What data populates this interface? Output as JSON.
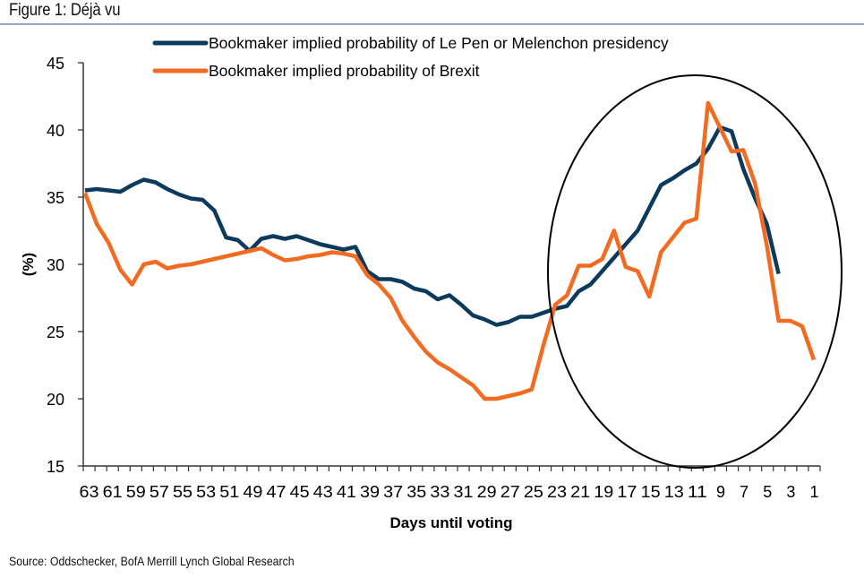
{
  "figure": {
    "title": "Figure 1: Déjà vu",
    "source": "Source: Oddschecker, BofA Merrill Lynch Global Research"
  },
  "chart_data": {
    "type": "line",
    "title": "Figure 1: Déjà vu",
    "xlabel": "Days until voting",
    "ylabel": "(%)",
    "ylim": [
      15,
      45
    ],
    "yticks": [
      15,
      20,
      25,
      30,
      35,
      40,
      45
    ],
    "xtick_labels": [
      "63",
      "61",
      "59",
      "57",
      "55",
      "53",
      "51",
      "49",
      "47",
      "45",
      "43",
      "41",
      "39",
      "37",
      "35",
      "33",
      "31",
      "29",
      "27",
      "25",
      "23",
      "21",
      "19",
      "17",
      "15",
      "13",
      "11",
      "9",
      "7",
      "5",
      "3",
      "1"
    ],
    "x": [
      63,
      62,
      61,
      60,
      59,
      58,
      57,
      56,
      55,
      54,
      53,
      52,
      51,
      50,
      49,
      48,
      47,
      46,
      45,
      44,
      43,
      42,
      41,
      40,
      39,
      38,
      37,
      36,
      35,
      34,
      33,
      32,
      31,
      30,
      29,
      28,
      27,
      26,
      25,
      24,
      23,
      22,
      21,
      20,
      19,
      18,
      17,
      16,
      15,
      14,
      13,
      12,
      11,
      10,
      9,
      8,
      7,
      6,
      5,
      4,
      3,
      2,
      1
    ],
    "grid": false,
    "legend_position": "top",
    "series": [
      {
        "name": "Bookmaker implied probability of Le Pen or Melenchon presidency",
        "color": "#0b3a5c",
        "values": [
          35.5,
          35.6,
          35.5,
          35.4,
          35.9,
          36.3,
          36.1,
          35.6,
          35.2,
          34.9,
          34.8,
          34.0,
          32.0,
          31.8,
          31.0,
          31.9,
          32.1,
          31.9,
          32.1,
          31.8,
          31.5,
          31.3,
          31.1,
          31.3,
          29.5,
          28.9,
          28.9,
          28.7,
          28.2,
          28.0,
          27.4,
          27.7,
          27.0,
          26.2,
          25.9,
          25.5,
          25.7,
          26.1,
          26.1,
          26.4,
          26.7,
          26.9,
          28.0,
          28.5,
          29.5,
          30.5,
          31.5,
          32.5,
          34.2,
          35.9,
          36.4,
          37.0,
          37.5,
          38.6,
          40.2,
          39.9,
          37.1,
          34.9,
          33.0,
          29.3,
          null,
          null,
          null
        ]
      },
      {
        "name": "Bookmaker implied probability of Brexit",
        "color": "#f26b21",
        "values": [
          35.3,
          33.0,
          31.6,
          29.6,
          28.5,
          30.0,
          30.2,
          29.7,
          29.9,
          30.0,
          30.2,
          30.4,
          30.6,
          30.8,
          31.0,
          31.2,
          30.7,
          30.3,
          30.4,
          30.6,
          30.7,
          30.9,
          30.8,
          30.6,
          29.2,
          28.5,
          27.5,
          25.8,
          24.6,
          23.5,
          22.7,
          22.2,
          21.6,
          21.0,
          20.0,
          20.0,
          20.2,
          20.4,
          20.7,
          24.0,
          27.0,
          27.7,
          29.9,
          29.9,
          30.4,
          32.5,
          29.8,
          29.5,
          27.6,
          30.9,
          32.0,
          33.1,
          33.4,
          42.0,
          40.2,
          38.4,
          38.5,
          36.0,
          31.4,
          25.8,
          25.8,
          25.4,
          22.9
        ]
      }
    ],
    "annotations": [
      {
        "type": "ellipse",
        "description": "circle highlighting the final ~23 days",
        "x_range_days": [
          24,
          0
        ]
      }
    ]
  }
}
